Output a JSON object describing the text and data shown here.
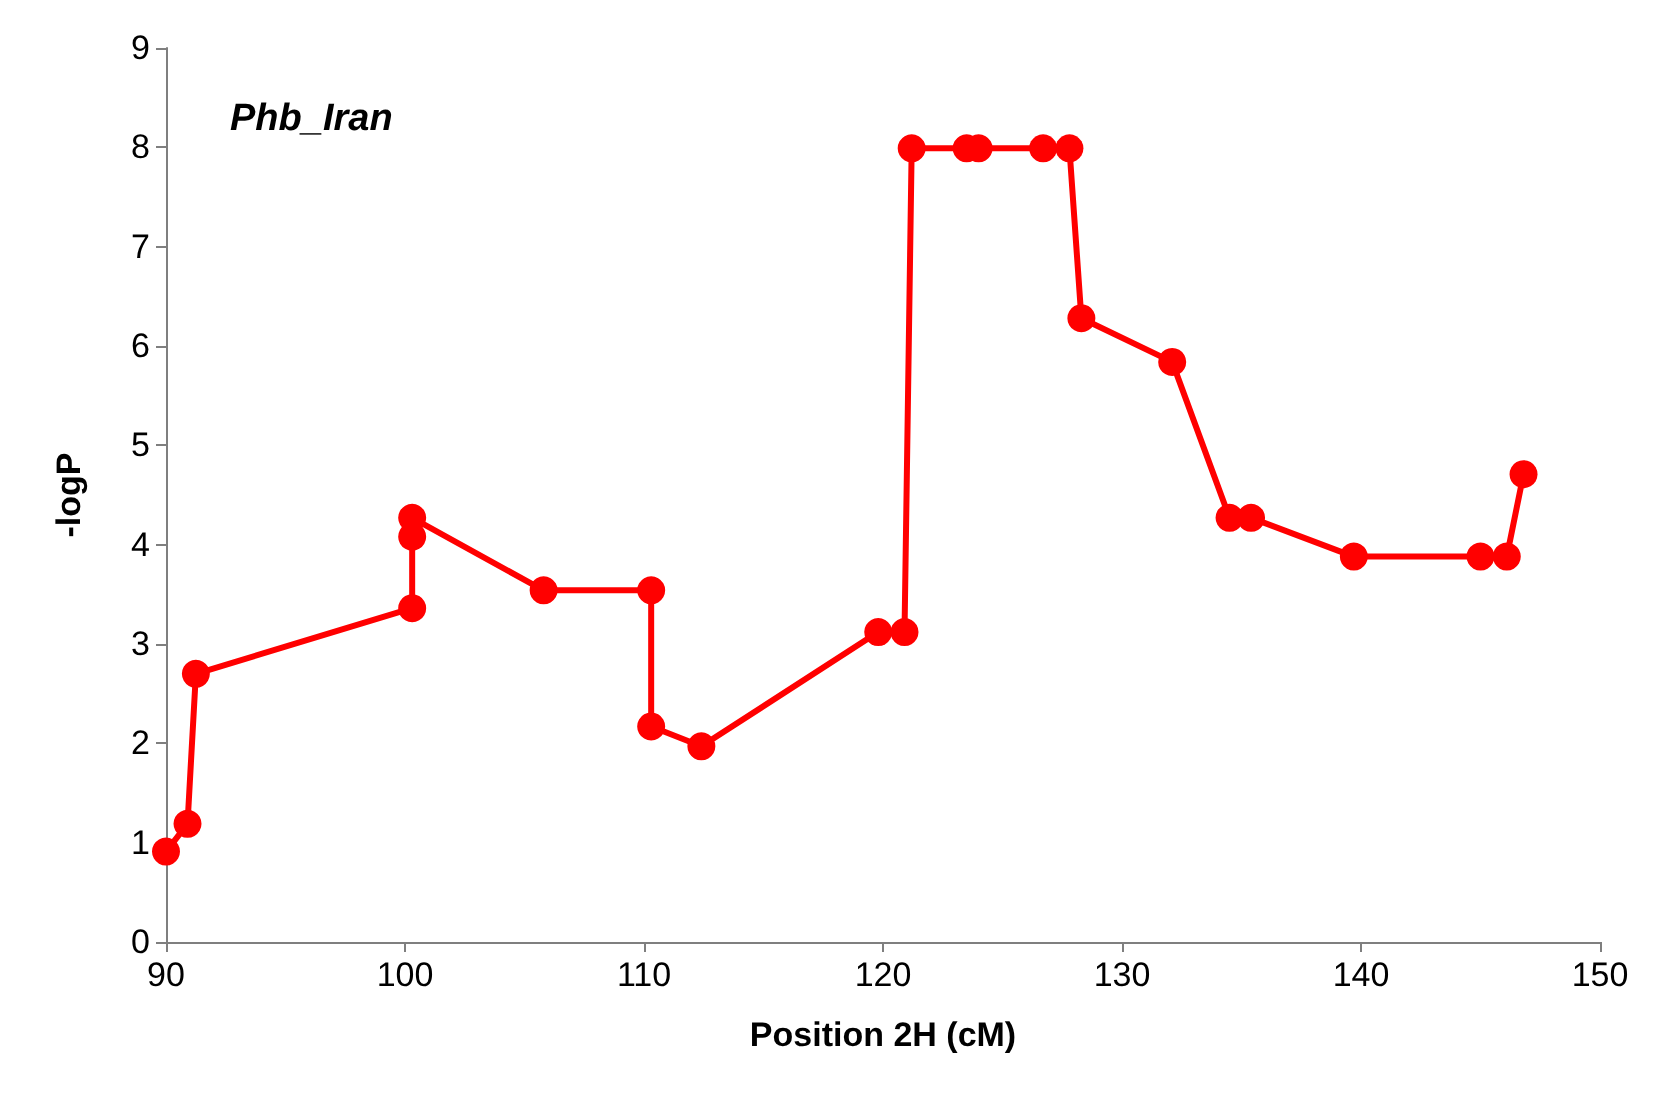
{
  "chart_data": {
    "type": "line",
    "title": "Phb_Iran",
    "xlabel": "Position 2H (cM)",
    "ylabel": "-logP",
    "x": [
      90,
      90.9,
      91.25,
      100.3,
      100.3,
      100.3,
      105.8,
      110.3,
      110.3,
      112.4,
      119.8,
      120.9,
      121.2,
      123.5,
      124.0,
      126.7,
      127.8,
      128.3,
      132.1,
      134.5,
      135.4,
      139.7,
      145.0,
      146.1,
      146.8
    ],
    "series": [
      {
        "color": "#ff0000",
        "values": [
          0.91,
          1.19,
          2.7,
          3.36,
          4.08,
          4.27,
          3.54,
          3.54,
          2.17,
          1.97,
          3.12,
          3.12,
          7.99,
          7.99,
          7.99,
          7.99,
          7.99,
          6.28,
          5.84,
          4.27,
          4.27,
          3.88,
          3.88,
          3.88,
          4.71
        ]
      }
    ],
    "xlim": [
      90,
      150
    ],
    "xticks": [
      90,
      100,
      110,
      120,
      130,
      140,
      150
    ],
    "ylim": [
      0,
      9
    ],
    "yticks": [
      0,
      1,
      2,
      3,
      4,
      5,
      6,
      7,
      8,
      9
    ],
    "grid": false,
    "marker": "circle",
    "line_style": "solid"
  }
}
